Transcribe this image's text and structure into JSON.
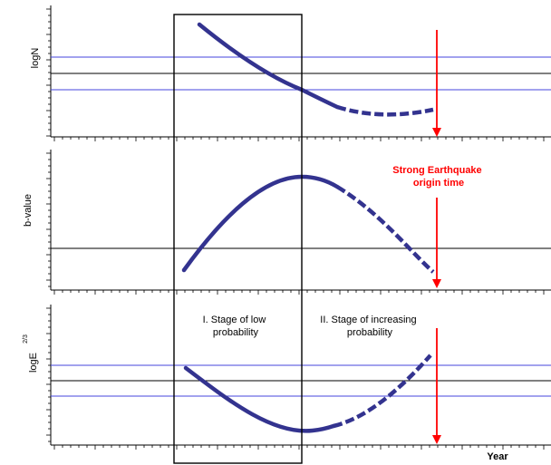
{
  "panels": [
    {
      "id": "logN",
      "ylabel": "logN",
      "ylabel_sup": "",
      "trend": "decrease then leveling off before the earthquake"
    },
    {
      "id": "b-value",
      "ylabel": "b-value",
      "ylabel_sup": "",
      "trend": "increase then decrease before the earthquake"
    },
    {
      "id": "logE",
      "ylabel": "logE",
      "ylabel_sup": "2/3",
      "trend": "decrease then increase before the earthquake"
    }
  ],
  "stages": [
    {
      "lines": [
        "I. Stage of low",
        "probability"
      ]
    },
    {
      "lines": [
        "II. Stage of increasing",
        "probability"
      ]
    }
  ],
  "earthquake_note": {
    "lines": [
      "Strong Earthquake",
      "origin time"
    ]
  },
  "xlabel": "Year",
  "colors": {
    "curve": "#33338f",
    "reference_lines": "#4444dd",
    "mean_line": "#000000",
    "earthquake_arrow": "#ff0000",
    "axes": "#000000"
  }
}
